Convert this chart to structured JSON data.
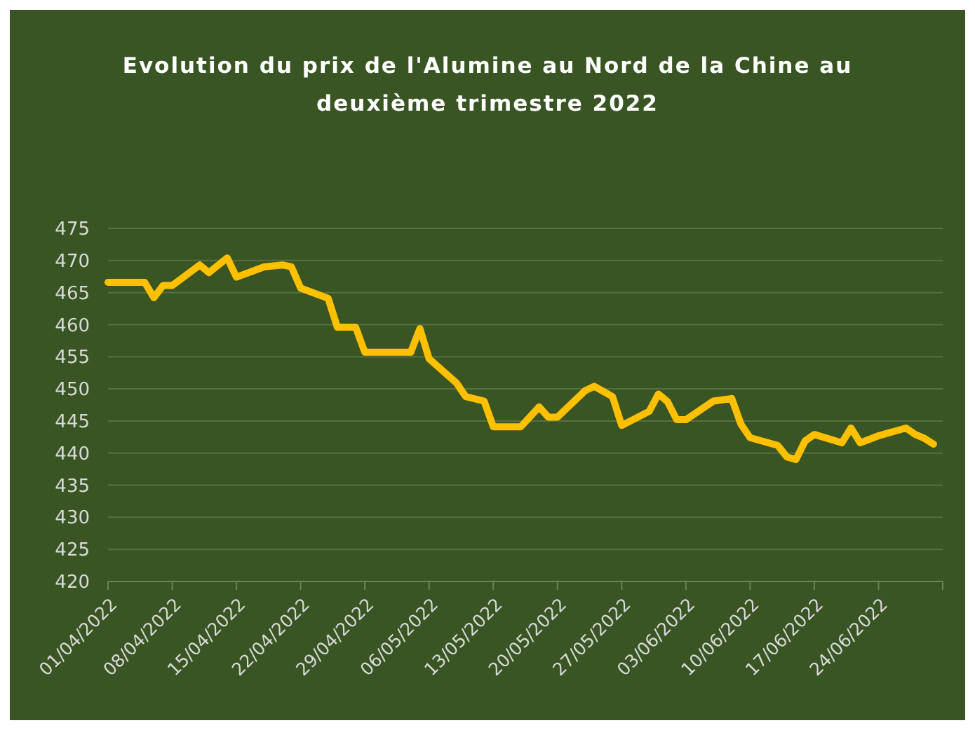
{
  "chart_data": {
    "type": "line",
    "title": "Evolution  du prix de l'Alumine  au Nord de la Chine au deuxième trimestre 2022",
    "x": [
      "2022-04-01",
      "2022-04-05",
      "2022-04-06",
      "2022-04-07",
      "2022-04-08",
      "2022-04-11",
      "2022-04-12",
      "2022-04-14",
      "2022-04-15",
      "2022-04-18",
      "2022-04-20",
      "2022-04-21",
      "2022-04-22",
      "2022-04-25",
      "2022-04-26",
      "2022-04-28",
      "2022-04-29",
      "2022-05-04",
      "2022-05-05",
      "2022-05-06",
      "2022-05-09",
      "2022-05-10",
      "2022-05-12",
      "2022-05-13",
      "2022-05-16",
      "2022-05-18",
      "2022-05-19",
      "2022-05-20",
      "2022-05-23",
      "2022-05-24",
      "2022-05-26",
      "2022-05-27",
      "2022-05-30",
      "2022-05-31",
      "2022-06-01",
      "2022-06-02",
      "2022-06-03",
      "2022-06-06",
      "2022-06-08",
      "2022-06-09",
      "2022-06-10",
      "2022-06-13",
      "2022-06-14",
      "2022-06-15",
      "2022-06-16",
      "2022-06-17",
      "2022-06-20",
      "2022-06-21",
      "2022-06-22",
      "2022-06-24",
      "2022-06-27",
      "2022-06-28",
      "2022-06-29",
      "2022-06-30"
    ],
    "series": [
      {
        "color": "#ffc000",
        "values": [
          466.6,
          466.6,
          464.2,
          466.1,
          466.1,
          469.3,
          468.1,
          470.4,
          467.4,
          469.0,
          469.3,
          469.0,
          465.7,
          464.1,
          459.6,
          459.6,
          455.7,
          455.7,
          459.4,
          454.7,
          450.9,
          448.8,
          448.1,
          444.1,
          444.1,
          447.2,
          445.6,
          445.6,
          449.7,
          450.4,
          448.8,
          444.3,
          446.5,
          449.2,
          448.0,
          445.2,
          445.2,
          448.1,
          448.5,
          444.5,
          442.4,
          441.2,
          439.4,
          439.0,
          441.9,
          442.9,
          441.6,
          443.9,
          441.6,
          442.7,
          443.9,
          442.9,
          442.3,
          441.4
        ]
      }
    ],
    "xlim": [
      "2022-04-01",
      "2022-07-01"
    ],
    "xticks": [
      {
        "value": "2022-04-01",
        "label": "01/04/2022"
      },
      {
        "value": "2022-04-08",
        "label": "08/04/2022"
      },
      {
        "value": "2022-04-15",
        "label": "15/04/2022"
      },
      {
        "value": "2022-04-22",
        "label": "22/04/2022"
      },
      {
        "value": "2022-04-29",
        "label": "29/04/2022"
      },
      {
        "value": "2022-05-06",
        "label": "06/05/2022"
      },
      {
        "value": "2022-05-13",
        "label": "13/05/2022"
      },
      {
        "value": "2022-05-20",
        "label": "20/05/2022"
      },
      {
        "value": "2022-05-27",
        "label": "27/05/2022"
      },
      {
        "value": "2022-06-03",
        "label": "03/06/2022"
      },
      {
        "value": "2022-06-10",
        "label": "10/06/2022"
      },
      {
        "value": "2022-06-17",
        "label": "17/06/2022"
      },
      {
        "value": "2022-06-24",
        "label": "24/06/2022"
      },
      {
        "value": "2022-07-01",
        "label": null
      }
    ],
    "ylim": [
      420,
      475
    ],
    "yticks": [
      420,
      425,
      430,
      435,
      440,
      445,
      450,
      455,
      460,
      465,
      470,
      475
    ],
    "grid": "y",
    "line_style": "solid",
    "marker": "none"
  }
}
